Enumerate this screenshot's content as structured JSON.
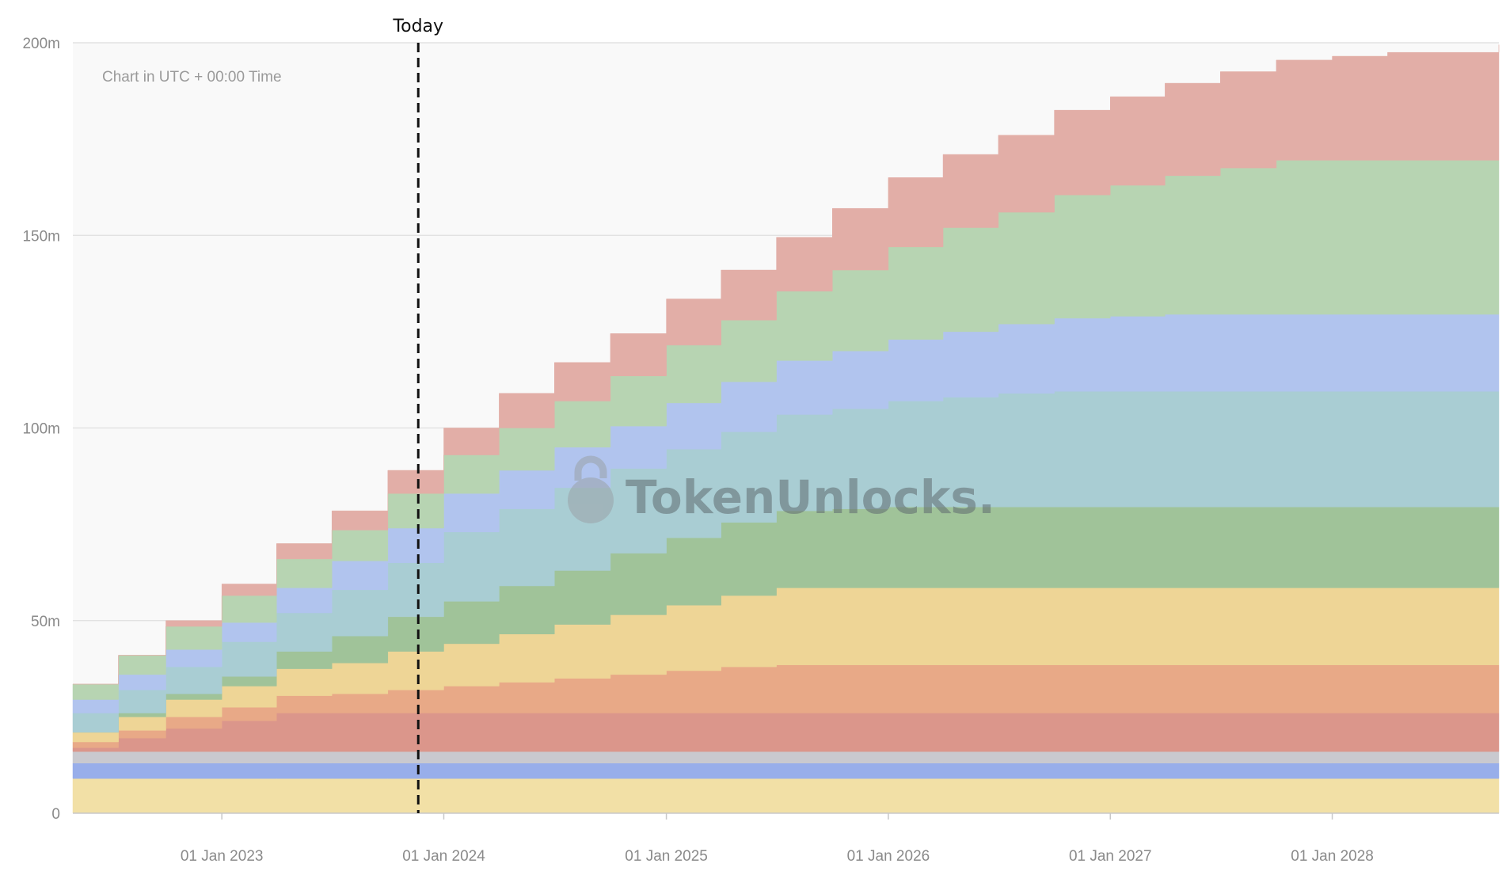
{
  "chart_data": {
    "type": "area",
    "stacked": true,
    "note": "Chart in UTC + 00:00 Time",
    "today_label": "Today",
    "today_x": "2023-11-20",
    "watermark": "TokenUnlocks.",
    "x_range": [
      "2022-05-01",
      "2028-10-01"
    ],
    "ylim": [
      0,
      200000000
    ],
    "y_ticks": [
      {
        "value": 0,
        "label": "0"
      },
      {
        "value": 50000000,
        "label": "50m"
      },
      {
        "value": 100000000,
        "label": "100m"
      },
      {
        "value": 150000000,
        "label": "150m"
      },
      {
        "value": 200000000,
        "label": "200m"
      }
    ],
    "x_ticks": [
      {
        "date": "2023-01-01",
        "label": "01 Jan 2023"
      },
      {
        "date": "2024-01-01",
        "label": "01 Jan 2024"
      },
      {
        "date": "2025-01-01",
        "label": "01 Jan 2025"
      },
      {
        "date": "2026-01-01",
        "label": "01 Jan 2026"
      },
      {
        "date": "2027-01-01",
        "label": "01 Jan 2027"
      },
      {
        "date": "2028-01-01",
        "label": "01 Jan 2028"
      }
    ],
    "dates": [
      "2022-05-01",
      "2022-07-15",
      "2022-10-01",
      "2023-01-01",
      "2023-04-01",
      "2023-07-01",
      "2023-10-01",
      "2024-01-01",
      "2024-04-01",
      "2024-07-01",
      "2024-10-01",
      "2025-01-01",
      "2025-04-01",
      "2025-07-01",
      "2025-10-01",
      "2026-01-01",
      "2026-04-01",
      "2026-07-01",
      "2026-10-01",
      "2027-01-01",
      "2027-04-01",
      "2027-07-01",
      "2027-10-01",
      "2028-01-01",
      "2028-04-01",
      "2028-10-01"
    ],
    "series": [
      {
        "color": "#f2e0a6",
        "values": [
          9,
          9,
          9,
          9,
          9,
          9,
          9,
          9,
          9,
          9,
          9,
          9,
          9,
          9,
          9,
          9,
          9,
          9,
          9,
          9,
          9,
          9,
          9,
          9,
          9,
          9
        ]
      },
      {
        "color": "#98aeea",
        "values": [
          4,
          4,
          4,
          4,
          4,
          4,
          4,
          4,
          4,
          4,
          4,
          4,
          4,
          4,
          4,
          4,
          4,
          4,
          4,
          4,
          4,
          4,
          4,
          4,
          4,
          4
        ]
      },
      {
        "color": "#c9c9cf",
        "values": [
          3,
          3,
          3,
          3,
          3,
          3,
          3,
          3,
          3,
          3,
          3,
          3,
          3,
          3,
          3,
          3,
          3,
          3,
          3,
          3,
          3,
          3,
          3,
          3,
          3,
          3
        ]
      },
      {
        "color": "#db968b",
        "values": [
          1,
          3.5,
          6,
          8,
          10,
          10,
          10,
          10,
          10,
          10,
          10,
          10,
          10,
          10,
          10,
          10,
          10,
          10,
          10,
          10,
          10,
          10,
          10,
          10,
          10,
          10
        ]
      },
      {
        "color": "#e8a987",
        "values": [
          1.5,
          2,
          3,
          3.5,
          4.5,
          5,
          6,
          7,
          8,
          9,
          10,
          11,
          12,
          12.5,
          12.5,
          12.5,
          12.5,
          12.5,
          12.5,
          12.5,
          12.5,
          12.5,
          12.5,
          12.5,
          12.5,
          12.5
        ]
      },
      {
        "color": "#eed596",
        "values": [
          2.5,
          3.5,
          4.5,
          5.5,
          7,
          8,
          10,
          11,
          12.5,
          14,
          15.5,
          17,
          18.5,
          20,
          20,
          20,
          20,
          20,
          20,
          20,
          20,
          20,
          20,
          20,
          20,
          20
        ]
      },
      {
        "color": "#a0c399",
        "values": [
          0,
          1,
          1.5,
          2.5,
          4.5,
          7,
          9,
          11,
          12.5,
          14,
          16,
          17.5,
          19,
          20,
          20.5,
          21,
          21,
          21,
          21,
          21,
          21,
          21,
          21,
          21,
          21,
          21
        ]
      },
      {
        "color": "#a9cdd3",
        "values": [
          5,
          6,
          7,
          9,
          10,
          12,
          14,
          18,
          20,
          21.5,
          22,
          23,
          23.5,
          25,
          26,
          27.5,
          28.5,
          29.5,
          30,
          30,
          30,
          30,
          30,
          30,
          30,
          30
        ]
      },
      {
        "color": "#b1c4ee",
        "values": [
          3.5,
          4,
          4.5,
          5,
          6.5,
          7.5,
          9,
          10,
          10,
          10.5,
          11,
          12,
          13,
          14,
          15,
          16,
          17,
          18,
          19,
          19.5,
          20,
          20,
          20,
          20,
          20,
          20
        ]
      },
      {
        "color": "#b7d4b2",
        "values": [
          4,
          5,
          6,
          7,
          7.5,
          8,
          9,
          10,
          11,
          12,
          13,
          15,
          16,
          18,
          21,
          24,
          27,
          29,
          32,
          34,
          36,
          38,
          40,
          40,
          40,
          40
        ]
      },
      {
        "color": "#e2aea7",
        "values": [
          0,
          0,
          1.5,
          3,
          4,
          5,
          6,
          7,
          9,
          10,
          11,
          12,
          13,
          14,
          16,
          18,
          19,
          20,
          22,
          23,
          24,
          25,
          26,
          27,
          28,
          30
        ]
      }
    ]
  }
}
